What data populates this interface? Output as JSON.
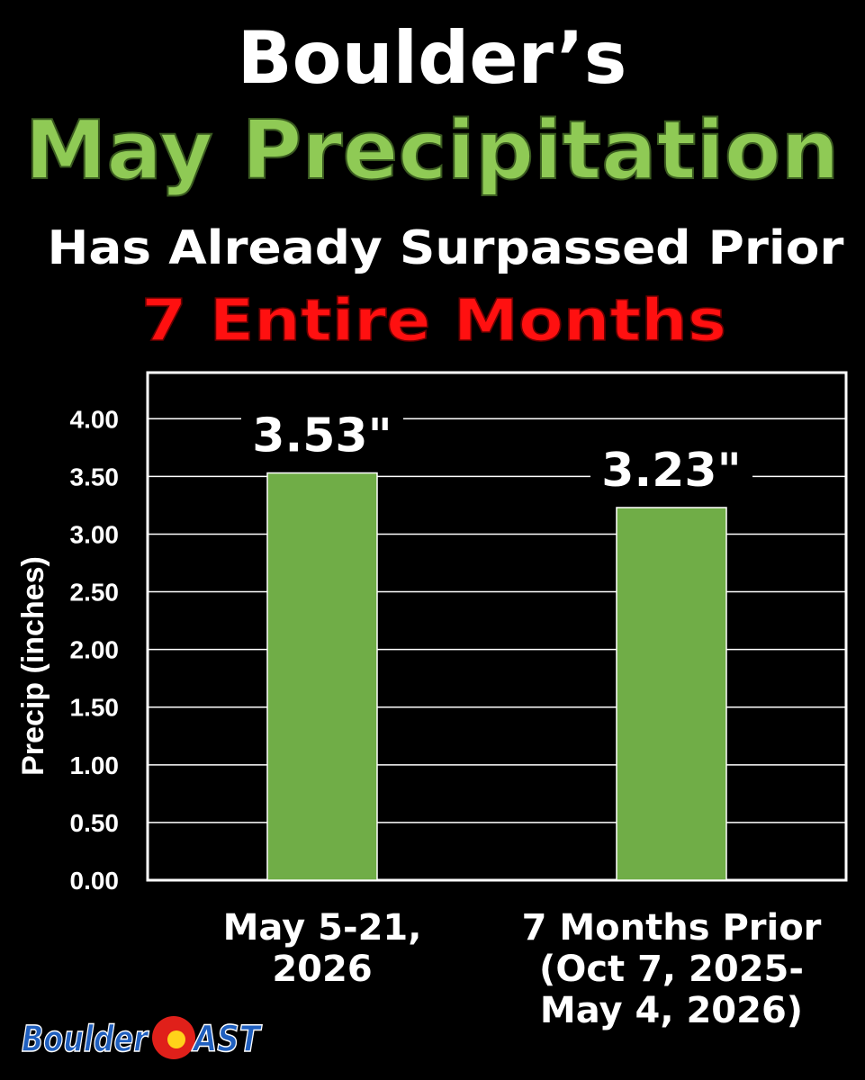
{
  "chart_data": {
    "type": "bar",
    "title": [
      "Boulder’s",
      "May Precipitation"
    ],
    "subtitle": [
      "Has Already Surpassed Prior",
      "7 Entire Months"
    ],
    "y_label": "Precip (inches)",
    "categories": [
      "May 5-21,\n2026",
      "7 Months Prior\n(Oct 7, 2025-\nMay 4, 2026)"
    ],
    "values": [
      3.53,
      3.23
    ],
    "value_labels": [
      "3.53\"",
      "3.23\""
    ],
    "color": "#70ad47",
    "ylim": [
      0,
      4.4
    ],
    "yticks": [
      {
        "value": 0,
        "label": "0.00"
      },
      {
        "value": 0.5,
        "label": "0.50"
      },
      {
        "value": 1,
        "label": "1.00"
      },
      {
        "value": 1.5,
        "label": "1.50"
      },
      {
        "value": 2,
        "label": "2.00"
      },
      {
        "value": 2.5,
        "label": "2.50"
      },
      {
        "value": 3,
        "label": "3.00"
      },
      {
        "value": 3.5,
        "label": "3.50"
      },
      {
        "value": 4,
        "label": "4.00"
      }
    ],
    "grid": true
  },
  "logo": [
    "Boulder",
    "AST"
  ]
}
